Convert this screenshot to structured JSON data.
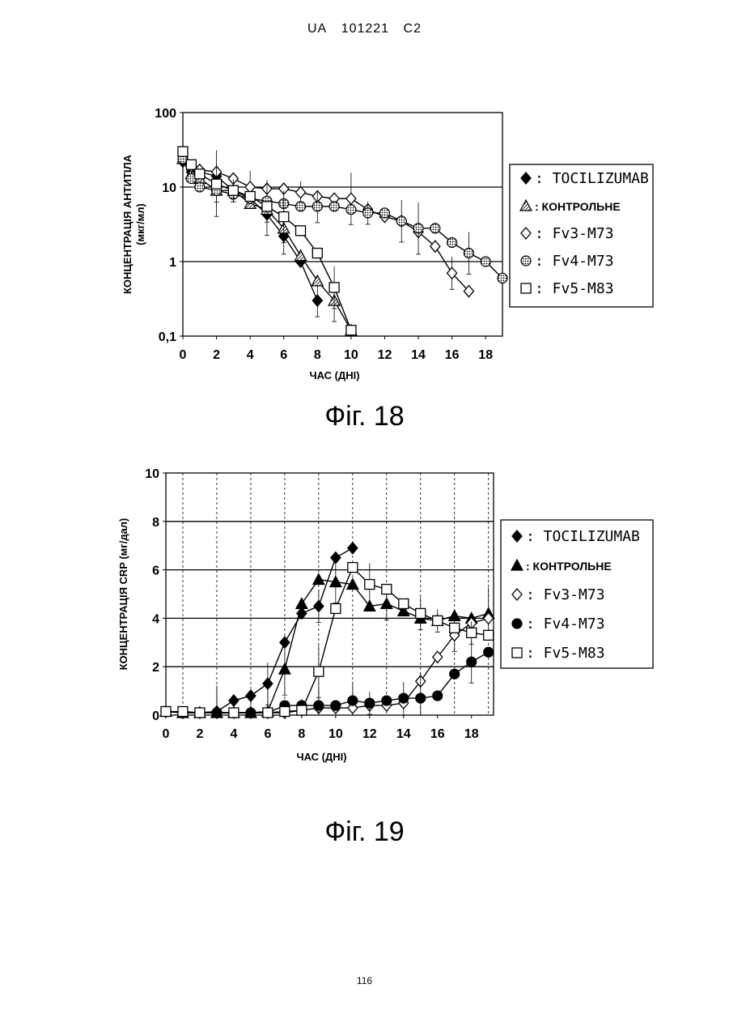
{
  "header": {
    "country": "UA",
    "number": "101221",
    "kind": "C2"
  },
  "page_number": "116",
  "colors": {
    "ink": "#000000",
    "paper": "#ffffff"
  },
  "chart_data": [
    {
      "type": "line",
      "caption": "Фіг. 18",
      "xlabel": "ЧАС (ДНІ)",
      "ylabel": "КОНЦЕНТРАЦІЯ АНТИТІЛА",
      "ylabel2": "(мкг/мл)",
      "xlim": [
        0,
        19
      ],
      "ylim": [
        0.1,
        100
      ],
      "yscale": "log",
      "x_ticks": [
        "0",
        "2",
        "4",
        "6",
        "8",
        "10",
        "12",
        "14",
        "16",
        "18"
      ],
      "y_ticks": [
        "100",
        "10",
        "1",
        "0,1"
      ],
      "grid": "horizontal",
      "legend_position": "right",
      "series": [
        {
          "name": "TOCILIZUMAB",
          "marker": "diamond-filled",
          "x": [
            0,
            0.5,
            1,
            2,
            3,
            4,
            5,
            6,
            7,
            8
          ],
          "y": [
            22,
            16,
            16,
            14,
            9,
            7,
            4.3,
            2.2,
            1.0,
            0.3
          ]
        },
        {
          "name": "КОНТРОЛЬНЕ",
          "marker": "triangle-hatched",
          "x": [
            0,
            0.5,
            1,
            2,
            3,
            4,
            5,
            6,
            7,
            8,
            9,
            10
          ],
          "y": [
            24,
            15,
            13,
            9,
            9,
            6,
            5,
            2.8,
            1.2,
            0.55,
            0.3,
            0.12
          ]
        },
        {
          "name": "Fv3-M73",
          "marker": "diamond-open",
          "x": [
            0,
            0.5,
            1,
            2,
            3,
            4,
            5,
            6,
            7,
            8,
            9,
            10,
            11,
            12,
            13,
            14,
            15,
            16,
            17
          ],
          "y": [
            26,
            19,
            17,
            16,
            13,
            10,
            9.5,
            9.5,
            8.5,
            7.5,
            7,
            7,
            5,
            4,
            3.5,
            2.5,
            1.6,
            0.7,
            0.4
          ]
        },
        {
          "name": "Fv4-M73",
          "marker": "circle-dotted",
          "x": [
            0,
            0.5,
            1,
            2,
            3,
            4,
            5,
            6,
            7,
            8,
            9,
            10,
            11,
            12,
            13,
            14,
            15,
            16,
            17,
            18,
            19
          ],
          "y": [
            24,
            13,
            10,
            9,
            8,
            7,
            6.5,
            6,
            5.5,
            5.5,
            5.5,
            5,
            4.5,
            4.5,
            3.5,
            2.8,
            2.8,
            1.8,
            1.3,
            1.0,
            0.6
          ]
        },
        {
          "name": "Fv5-M83",
          "marker": "square-open",
          "x": [
            0,
            0.5,
            1,
            2,
            3,
            4,
            5,
            6,
            7,
            8,
            9,
            10
          ],
          "y": [
            30,
            20,
            15,
            11,
            9,
            7.5,
            5.5,
            4,
            2.6,
            1.3,
            0.45,
            0.12
          ]
        }
      ]
    },
    {
      "type": "line",
      "caption": "Фіг. 19",
      "xlabel": "ЧАС (ДНІ)",
      "ylabel": "КОНЦЕНТРАЦІЯ CRP (мг/дал)",
      "xlim": [
        0,
        19
      ],
      "ylim": [
        0,
        10
      ],
      "x_ticks": [
        "0",
        "2",
        "4",
        "6",
        "8",
        "10",
        "12",
        "14",
        "16",
        "18"
      ],
      "y_ticks": [
        "10",
        "8",
        "6",
        "4",
        "2",
        "0"
      ],
      "grid": "both",
      "legend_position": "right",
      "series": [
        {
          "name": "TOCILIZUMAB",
          "marker": "diamond-filled",
          "x": [
            0,
            1,
            2,
            3,
            4,
            5,
            6,
            7,
            8,
            9,
            10,
            11
          ],
          "y": [
            0.15,
            0.1,
            0.1,
            0.15,
            0.6,
            0.8,
            1.3,
            3.0,
            4.2,
            4.5,
            6.5,
            6.9
          ]
        },
        {
          "name": "КОНТРОЛЬНЕ",
          "marker": "triangle-filled",
          "x": [
            0,
            1,
            2,
            3,
            4,
            5,
            6,
            7,
            8,
            9,
            10,
            11,
            12,
            13,
            14,
            15,
            16,
            17,
            18,
            19
          ],
          "y": [
            0.15,
            0.1,
            0.1,
            0.1,
            0.1,
            0.1,
            0.15,
            1.9,
            4.6,
            5.6,
            5.5,
            5.4,
            4.5,
            4.6,
            4.3,
            4.0,
            3.9,
            4.1,
            4.0,
            4.2
          ]
        },
        {
          "name": "Fv3-M73",
          "marker": "diamond-open",
          "x": [
            0,
            1,
            2,
            3,
            4,
            5,
            6,
            7,
            8,
            9,
            10,
            11,
            12,
            13,
            14,
            15,
            16,
            17,
            18,
            19
          ],
          "y": [
            0.15,
            0.1,
            0.1,
            0.1,
            0.1,
            0.1,
            0.1,
            0.1,
            0.2,
            0.3,
            0.3,
            0.3,
            0.4,
            0.4,
            0.5,
            1.4,
            2.4,
            3.3,
            3.8,
            4.0
          ]
        },
        {
          "name": "Fv4-M73",
          "marker": "circle-filled",
          "x": [
            0,
            1,
            2,
            3,
            4,
            5,
            6,
            7,
            8,
            9,
            10,
            11,
            12,
            13,
            14,
            15,
            16,
            17,
            18,
            19
          ],
          "y": [
            0.15,
            0.1,
            0.1,
            0.1,
            0.1,
            0.1,
            0.1,
            0.4,
            0.4,
            0.4,
            0.4,
            0.6,
            0.5,
            0.6,
            0.7,
            0.7,
            0.8,
            1.7,
            2.2,
            2.6
          ]
        },
        {
          "name": "Fv5-M83",
          "marker": "square-open",
          "x": [
            0,
            1,
            2,
            4,
            6,
            7,
            8,
            9,
            10,
            11,
            12,
            13,
            14,
            15,
            16,
            17,
            18,
            19
          ],
          "y": [
            0.15,
            0.15,
            0.1,
            0.1,
            0.1,
            0.15,
            0.2,
            1.8,
            4.4,
            6.1,
            5.4,
            5.2,
            4.6,
            4.2,
            3.9,
            3.6,
            3.4,
            3.3
          ]
        }
      ]
    }
  ]
}
